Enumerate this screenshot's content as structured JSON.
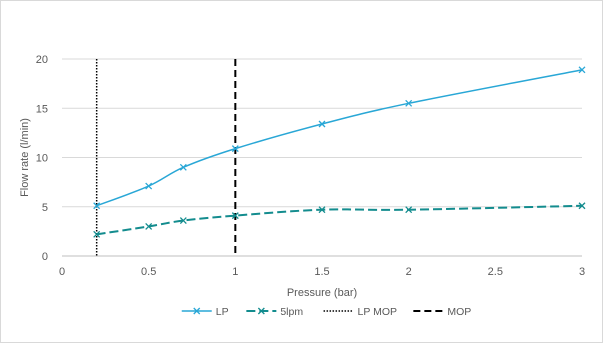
{
  "chart_data": {
    "type": "line",
    "title": "",
    "xlabel": "Pressure (bar)",
    "ylabel": "Flow rate (l/min)",
    "xlim": [
      0,
      3
    ],
    "ylim": [
      0,
      20
    ],
    "x_ticks": [
      0,
      0.5,
      1,
      1.5,
      2,
      2.5,
      3
    ],
    "y_ticks": [
      0,
      5,
      10,
      15,
      20
    ],
    "x_tick_labels": [
      "0",
      "0.5",
      "1",
      "1.5",
      "2",
      "2.5",
      "3"
    ],
    "y_tick_labels": [
      "0",
      "5",
      "10",
      "15",
      "20"
    ],
    "grid": "horizontal",
    "legend_position": "bottom",
    "series": [
      {
        "name": "LP",
        "color": "#29a7d6",
        "line_style": "solid",
        "marker": "x",
        "x": [
          0.2,
          0.5,
          0.7,
          1.0,
          1.5,
          2.0,
          3.0
        ],
        "y": [
          5.1,
          7.1,
          9.0,
          10.9,
          13.4,
          15.5,
          18.9
        ]
      },
      {
        "name": "5lpm",
        "color": "#138c8e",
        "line_style": "dashed",
        "marker": "x",
        "x": [
          0.2,
          0.5,
          0.7,
          1.0,
          1.5,
          2.0,
          3.0
        ],
        "y": [
          2.2,
          3.0,
          3.6,
          4.1,
          4.7,
          4.7,
          5.1
        ]
      },
      {
        "name": "LP MOP",
        "color": "#000000",
        "line_style": "dotted",
        "vertical_x": 0.2
      },
      {
        "name": "MOP",
        "color": "#000000",
        "line_style": "dashed-long",
        "vertical_x": 1.0
      }
    ]
  }
}
